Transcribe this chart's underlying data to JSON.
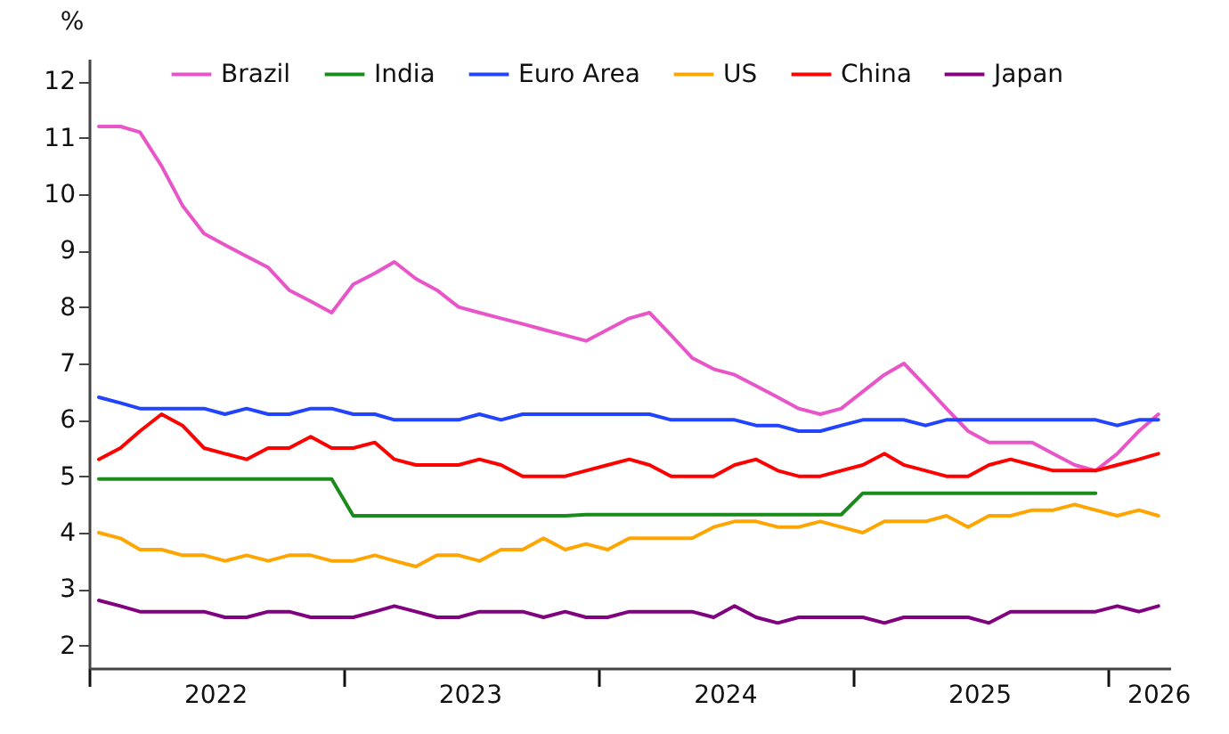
{
  "chart_data": {
    "type": "line",
    "ylabel": "%",
    "x": [
      "2022-01-15",
      "2022-02-15",
      "2022-03-15",
      "2022-04-15",
      "2022-05-15",
      "2022-06-15",
      "2022-07-15",
      "2022-08-15",
      "2022-09-15",
      "2022-10-15",
      "2022-11-15",
      "2022-12-15",
      "2023-01-15",
      "2023-02-15",
      "2023-03-15",
      "2023-04-15",
      "2023-05-15",
      "2023-06-15",
      "2023-07-15",
      "2023-08-15",
      "2023-09-15",
      "2023-10-15",
      "2023-11-15",
      "2023-12-15",
      "2024-01-15",
      "2024-02-15",
      "2024-03-15",
      "2024-04-15",
      "2024-05-15",
      "2024-06-15",
      "2024-07-15",
      "2024-08-15",
      "2024-09-15",
      "2024-10-15",
      "2024-11-15",
      "2024-12-15",
      "2025-01-15",
      "2025-02-15",
      "2025-03-15",
      "2025-04-15",
      "2025-05-15",
      "2025-06-15",
      "2025-07-15",
      "2025-08-15",
      "2025-09-15",
      "2025-10-15",
      "2025-11-15",
      "2025-12-15",
      "2026-01-15",
      "2026-02-15",
      "2026-03-15"
    ],
    "series": [
      {
        "name": "Brazil",
        "color": "#e855c8",
        "values": [
          11.2,
          11.2,
          11.1,
          10.5,
          9.8,
          9.3,
          9.1,
          8.9,
          8.7,
          8.3,
          8.1,
          7.9,
          8.4,
          8.6,
          8.8,
          8.5,
          8.3,
          8.0,
          7.9,
          7.8,
          7.7,
          7.6,
          7.5,
          7.4,
          7.6,
          7.8,
          7.9,
          7.5,
          7.1,
          6.9,
          6.8,
          6.6,
          6.4,
          6.2,
          6.1,
          6.2,
          6.5,
          6.8,
          7.0,
          6.6,
          6.2,
          5.8,
          5.6,
          5.6,
          5.6,
          5.4,
          5.2,
          5.1,
          5.4,
          5.8,
          6.1
        ]
      },
      {
        "name": "India",
        "color": "#1a8a1a",
        "values": [
          4.95,
          4.95,
          4.95,
          4.95,
          4.95,
          4.95,
          4.95,
          4.95,
          4.95,
          4.95,
          4.95,
          4.95,
          4.3,
          4.3,
          4.3,
          4.3,
          4.3,
          4.3,
          4.3,
          4.3,
          4.3,
          4.3,
          4.3,
          4.32,
          4.32,
          4.32,
          4.32,
          4.32,
          4.32,
          4.32,
          4.32,
          4.32,
          4.32,
          4.32,
          4.32,
          4.32,
          4.7,
          4.7,
          4.7,
          4.7,
          4.7,
          4.7,
          4.7,
          4.7,
          4.7,
          4.7,
          4.7,
          4.7,
          null,
          null,
          null
        ]
      },
      {
        "name": "Euro Area",
        "color": "#2244ff",
        "values": [
          6.4,
          6.3,
          6.2,
          6.2,
          6.2,
          6.2,
          6.1,
          6.2,
          6.1,
          6.1,
          6.2,
          6.2,
          6.1,
          6.1,
          6.0,
          6.0,
          6.0,
          6.0,
          6.1,
          6.0,
          6.1,
          6.1,
          6.1,
          6.1,
          6.1,
          6.1,
          6.1,
          6.0,
          6.0,
          6.0,
          6.0,
          5.9,
          5.9,
          5.8,
          5.8,
          5.9,
          6.0,
          6.0,
          6.0,
          5.9,
          6.0,
          6.0,
          6.0,
          6.0,
          6.0,
          6.0,
          6.0,
          6.0,
          5.9,
          6.0,
          6.0
        ]
      },
      {
        "name": "US",
        "color": "#ffa500",
        "values": [
          4.0,
          3.9,
          3.7,
          3.7,
          3.6,
          3.6,
          3.5,
          3.6,
          3.5,
          3.6,
          3.6,
          3.5,
          3.5,
          3.6,
          3.5,
          3.4,
          3.6,
          3.6,
          3.5,
          3.7,
          3.7,
          3.9,
          3.7,
          3.8,
          3.7,
          3.9,
          3.9,
          3.9,
          3.9,
          4.1,
          4.2,
          4.2,
          4.1,
          4.1,
          4.2,
          4.1,
          4.0,
          4.2,
          4.2,
          4.2,
          4.3,
          4.1,
          4.3,
          4.3,
          4.4,
          4.4,
          4.5,
          4.4,
          4.3,
          4.4,
          4.3
        ]
      },
      {
        "name": "China",
        "color": "#ff0000",
        "values": [
          5.3,
          5.5,
          5.8,
          6.1,
          5.9,
          5.5,
          5.4,
          5.3,
          5.5,
          5.5,
          5.7,
          5.5,
          5.5,
          5.6,
          5.3,
          5.2,
          5.2,
          5.2,
          5.3,
          5.2,
          5.0,
          5.0,
          5.0,
          5.1,
          5.2,
          5.3,
          5.2,
          5.0,
          5.0,
          5.0,
          5.2,
          5.3,
          5.1,
          5.0,
          5.0,
          5.1,
          5.2,
          5.4,
          5.2,
          5.1,
          5.0,
          5.0,
          5.2,
          5.3,
          5.2,
          5.1,
          5.1,
          5.1,
          5.2,
          5.3,
          5.4
        ]
      },
      {
        "name": "Japan",
        "color": "#800080",
        "values": [
          2.8,
          2.7,
          2.6,
          2.6,
          2.6,
          2.6,
          2.5,
          2.5,
          2.6,
          2.6,
          2.5,
          2.5,
          2.5,
          2.6,
          2.7,
          2.6,
          2.5,
          2.5,
          2.6,
          2.6,
          2.6,
          2.5,
          2.6,
          2.5,
          2.5,
          2.6,
          2.6,
          2.6,
          2.6,
          2.5,
          2.7,
          2.5,
          2.4,
          2.5,
          2.5,
          2.5,
          2.5,
          2.4,
          2.5,
          2.5,
          2.5,
          2.5,
          2.4,
          2.6,
          2.6,
          2.6,
          2.6,
          2.6,
          2.7,
          2.6,
          2.7
        ]
      }
    ],
    "xlim": [
      "2022-01-01",
      "2026-04-01"
    ],
    "xticks": [
      {
        "value": "2022-01-01",
        "label": null
      },
      {
        "value": "2023-01-01",
        "label": null
      },
      {
        "value": "2024-01-01",
        "label": null
      },
      {
        "value": "2025-01-01",
        "label": null
      },
      {
        "value": "2026-01-01",
        "label": null
      },
      {
        "value": "2022-07-01",
        "label": "2022"
      },
      {
        "value": "2023-07-01",
        "label": "2023"
      },
      {
        "value": "2024-07-01",
        "label": "2024"
      },
      {
        "value": "2025-07-01",
        "label": "2025"
      },
      {
        "value": "2026-03-15",
        "label": "2026"
      }
    ],
    "ylim": [
      1.6,
      12.4
    ],
    "yticks": [
      2,
      3,
      4,
      5,
      6,
      7,
      8,
      9,
      10,
      11,
      12
    ],
    "grid": false,
    "legend": "top",
    "line_style": "solid",
    "marker": "none"
  }
}
